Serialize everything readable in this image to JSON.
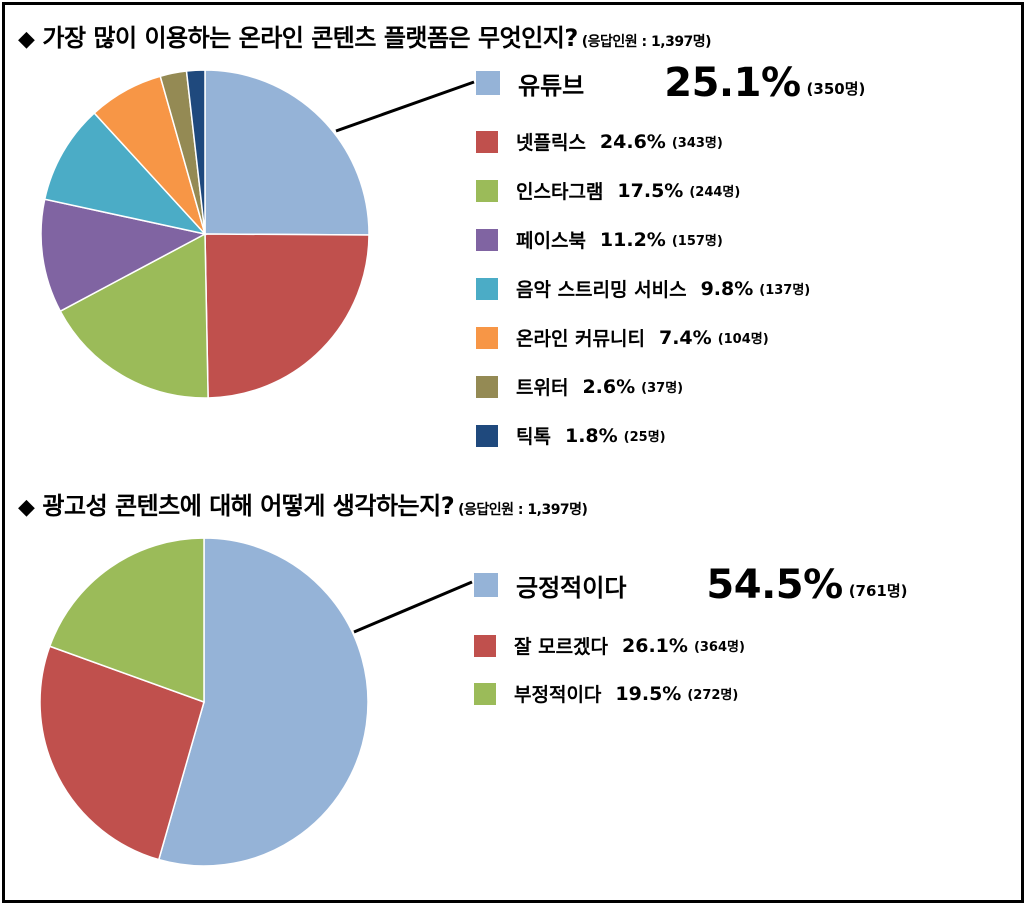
{
  "chart_data": [
    {
      "type": "pie",
      "title": "가장 많이 이용하는 온라인 콘텐츠 플랫폼은 무엇인지?",
      "respondents": "(응답인원 : 1,397명)",
      "slices": [
        {
          "label": "유튜브",
          "value": 25.1,
          "pct_text": "25.1%",
          "count_text": "(350명)",
          "color": "#95B3D7"
        },
        {
          "label": "넷플릭스",
          "value": 24.6,
          "pct_text": "24.6%",
          "count_text": "(343명)",
          "color": "#C0504D"
        },
        {
          "label": "인스타그램",
          "value": 17.5,
          "pct_text": "17.5%",
          "count_text": "(244명)",
          "color": "#9BBB59"
        },
        {
          "label": "페이스북",
          "value": 11.2,
          "pct_text": "11.2%",
          "count_text": "(157명)",
          "color": "#8064A2"
        },
        {
          "label": "음악 스트리밍 서비스",
          "value": 9.8,
          "pct_text": "9.8%",
          "count_text": "(137명)",
          "color": "#4BACC6"
        },
        {
          "label": "온라인 커뮤니티",
          "value": 7.4,
          "pct_text": "7.4%",
          "count_text": "(104명)",
          "color": "#F79646"
        },
        {
          "label": "트위터",
          "value": 2.6,
          "pct_text": "2.6%",
          "count_text": "(37명)",
          "color": "#948A54"
        },
        {
          "label": "틱톡",
          "value": 1.8,
          "pct_text": "1.8%",
          "count_text": "(25명)",
          "color": "#1F497D"
        }
      ]
    },
    {
      "type": "pie",
      "title": "광고성 콘텐츠에 대해 어떻게 생각하는지?",
      "respondents": "(응답인원 : 1,397명)",
      "slices": [
        {
          "label": "긍정적이다",
          "value": 54.5,
          "pct_text": "54.5%",
          "count_text": "(761명)",
          "color": "#95B3D7"
        },
        {
          "label": "잘 모르겠다",
          "value": 26.1,
          "pct_text": "26.1%",
          "count_text": "(364명)",
          "color": "#C0504D"
        },
        {
          "label": "부정적이다",
          "value": 19.5,
          "pct_text": "19.5%",
          "count_text": "(272명)",
          "color": "#9BBB59"
        }
      ]
    }
  ],
  "marker": "◆"
}
